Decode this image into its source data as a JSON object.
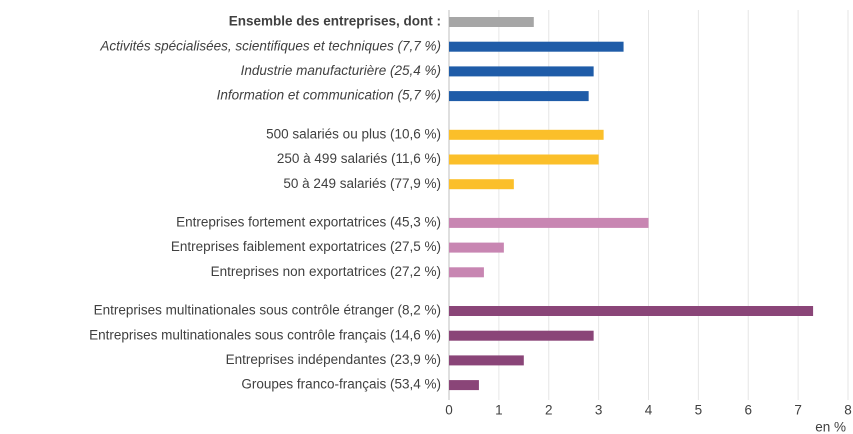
{
  "chart_data": {
    "type": "barh",
    "categories": [
      "Ensemble des entreprises, dont :",
      "Activités spécialisées, scientifiques et techniques (7,7 %)",
      "Industrie manufacturière (25,4 %)",
      "Information et communication (5,7 %)",
      "500 salariés ou plus (10,6 %)",
      "250 à 499 salariés (11,6 %)",
      "50 à 249 salariés (77,9 %)",
      "Entreprises fortement exportatrices (45,3 %)",
      "Entreprises faiblement exportatrices (27,5 %)",
      "Entreprises non exportatrices (27,2 %)",
      "Entreprises multinationales sous contrôle étranger (8,2 %)",
      "Entreprises multinationales sous contrôle français (14,6 %)",
      "Entreprises indépendantes (23,9 %)",
      "Groupes franco-français (53,4 %)"
    ],
    "values": [
      1.7,
      3.5,
      2.9,
      2.8,
      3.1,
      3.0,
      1.3,
      4.0,
      1.1,
      0.7,
      7.3,
      2.9,
      1.5,
      0.6
    ],
    "colors": [
      "#a6a6a6",
      "#1f5ca8",
      "#1f5ca8",
      "#1f5ca8",
      "#fbbf2a",
      "#fbbf2a",
      "#fbbf2a",
      "#c886b2",
      "#c886b2",
      "#c886b2",
      "#8a4578",
      "#8a4578",
      "#8a4578",
      "#8a4578"
    ],
    "xlabel": "en %",
    "xlim": [
      0,
      8
    ],
    "xticks": [
      0,
      1,
      2,
      3,
      4,
      5,
      6,
      7,
      8
    ],
    "grid": true
  }
}
